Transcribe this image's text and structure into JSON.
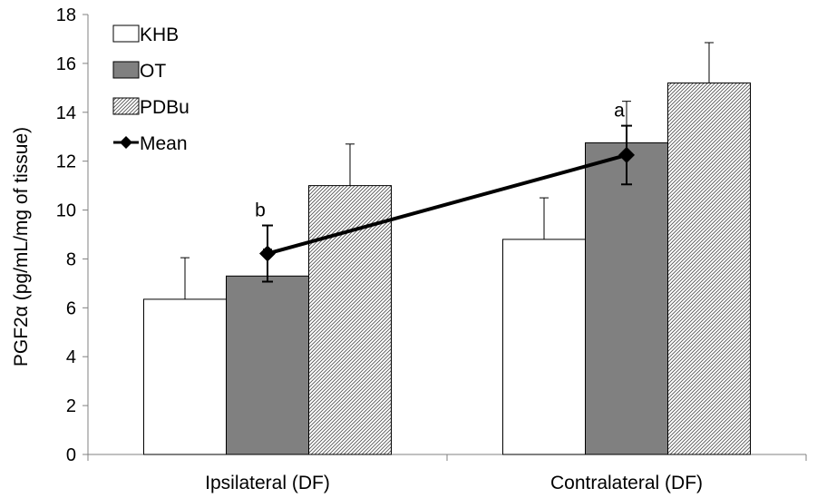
{
  "chart_data": {
    "type": "bar",
    "title": "",
    "xlabel": "",
    "ylabel": "PGF2α  (pg/mL/mg of tissue)",
    "ylim": [
      0,
      18
    ],
    "yticks": [
      0,
      2,
      4,
      6,
      8,
      10,
      12,
      14,
      16,
      18
    ],
    "grid": false,
    "legend_position": "top-left",
    "categories": [
      "Ipsilateral (DF)",
      "Contralateral (DF)"
    ],
    "series": [
      {
        "name": "KHB",
        "values": [
          6.35,
          8.8
        ],
        "errors": [
          1.7,
          1.7
        ],
        "fill": "#ffffff",
        "pattern": "solid"
      },
      {
        "name": "OT",
        "values": [
          7.3,
          12.75
        ],
        "errors": [
          1.1,
          1.7
        ],
        "fill": "#808080",
        "pattern": "solid"
      },
      {
        "name": "PDBu",
        "values": [
          11.0,
          15.2
        ],
        "errors": [
          1.7,
          1.65
        ],
        "fill": "#ffffff",
        "pattern": "diagonal-hatch"
      }
    ],
    "mean_line": {
      "name": "Mean",
      "values": [
        8.22,
        12.25
      ],
      "errors": [
        1.15,
        1.2
      ],
      "labels": [
        "b",
        "a"
      ],
      "color": "#000000",
      "marker": "diamond"
    }
  }
}
